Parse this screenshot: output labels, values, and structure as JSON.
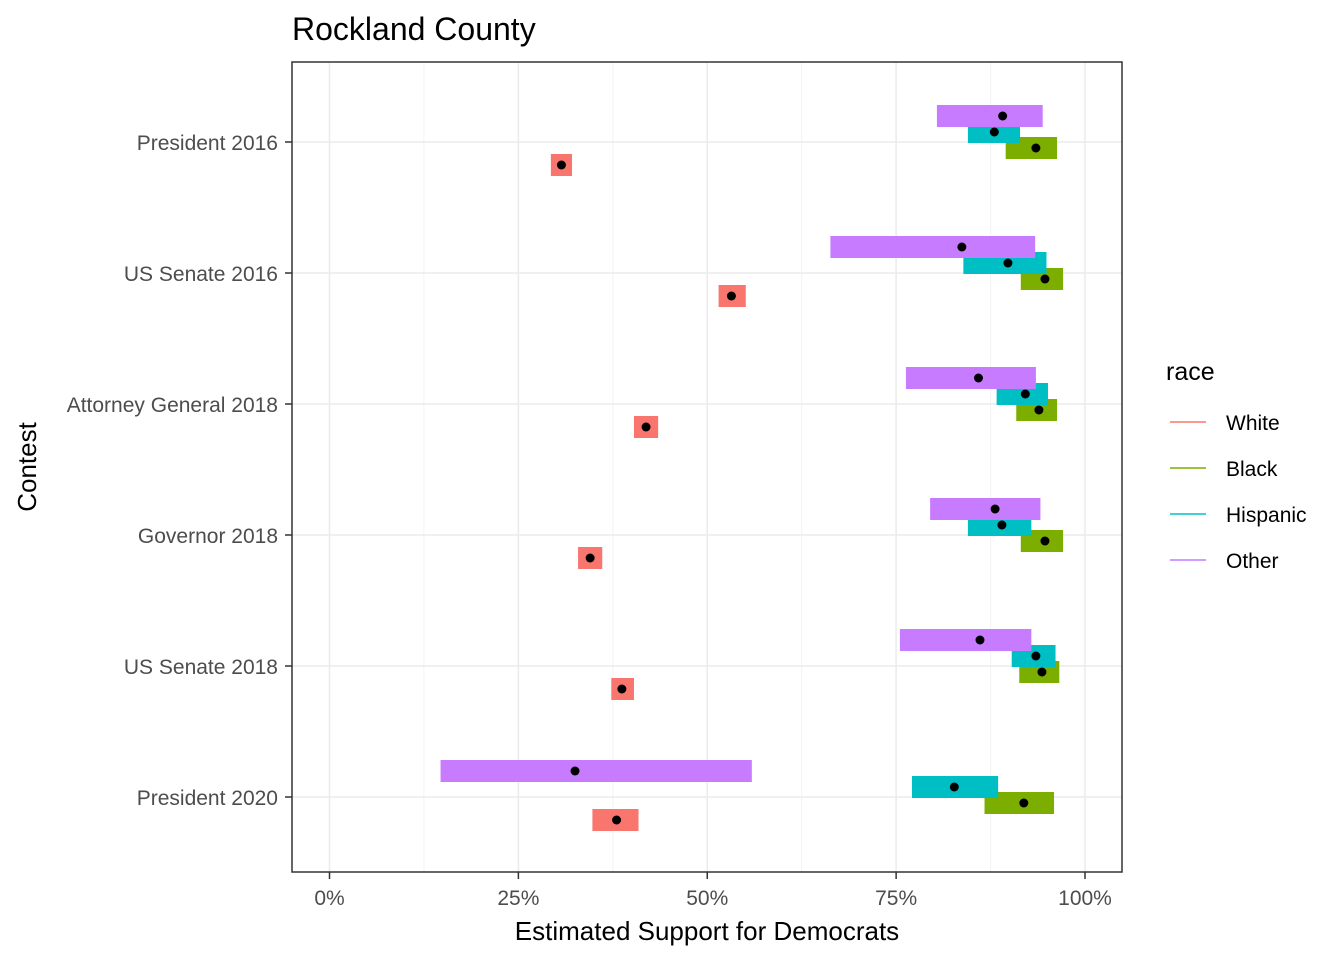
{
  "chart_data": {
    "type": "range-dot",
    "title": "Rockland County",
    "xlabel": "Estimated Support for Democrats",
    "ylabel": "Contest",
    "xlim": [
      -0.1,
      2.1
    ],
    "x_ticks": [
      0,
      0.25,
      0.5,
      0.75,
      1.0
    ],
    "x_tick_labels": [
      "0%",
      "25%",
      "50%",
      "75%",
      "100%"
    ],
    "grid": true,
    "legend": {
      "title": "race",
      "placement": "right"
    },
    "categories": [
      "President 2016",
      "US Senate 2016",
      "Attorney General 2018",
      "Governor 2018",
      "US Senate 2018",
      "President 2020"
    ],
    "series": [
      {
        "name": "White",
        "color": "#F8766D",
        "points": [
          {
            "contest": "President 2016",
            "estimate": 0.307,
            "low": 0.293,
            "high": 0.321
          },
          {
            "contest": "US Senate 2016",
            "estimate": 0.532,
            "low": 0.515,
            "high": 0.551
          },
          {
            "contest": "Attorney General 2018",
            "estimate": 0.419,
            "low": 0.403,
            "high": 0.435
          },
          {
            "contest": "Governor 2018",
            "estimate": 0.345,
            "low": 0.329,
            "high": 0.361
          },
          {
            "contest": "US Senate 2018",
            "estimate": 0.387,
            "low": 0.373,
            "high": 0.403
          },
          {
            "contest": "President 2020",
            "estimate": 0.38,
            "low": 0.348,
            "high": 0.409
          }
        ]
      },
      {
        "name": "Black",
        "color": "#7CAE00",
        "points": [
          {
            "contest": "President 2016",
            "estimate": 0.935,
            "low": 0.895,
            "high": 0.963
          },
          {
            "contest": "US Senate 2016",
            "estimate": 0.947,
            "low": 0.915,
            "high": 0.971
          },
          {
            "contest": "Attorney General 2018",
            "estimate": 0.939,
            "low": 0.909,
            "high": 0.963
          },
          {
            "contest": "Governor 2018",
            "estimate": 0.947,
            "low": 0.915,
            "high": 0.971
          },
          {
            "contest": "US Senate 2018",
            "estimate": 0.943,
            "low": 0.913,
            "high": 0.966
          },
          {
            "contest": "President 2020",
            "estimate": 0.919,
            "low": 0.867,
            "high": 0.959
          }
        ]
      },
      {
        "name": "Hispanic",
        "color": "#00BFC4",
        "points": [
          {
            "contest": "President 2016",
            "estimate": 0.88,
            "low": 0.845,
            "high": 0.914
          },
          {
            "contest": "US Senate 2016",
            "estimate": 0.898,
            "low": 0.839,
            "high": 0.949
          },
          {
            "contest": "Attorney General 2018",
            "estimate": 0.921,
            "low": 0.883,
            "high": 0.951
          },
          {
            "contest": "Governor 2018",
            "estimate": 0.89,
            "low": 0.845,
            "high": 0.929
          },
          {
            "contest": "US Senate 2018",
            "estimate": 0.935,
            "low": 0.903,
            "high": 0.961
          },
          {
            "contest": "President 2020",
            "estimate": 0.827,
            "low": 0.771,
            "high": 0.885
          }
        ]
      },
      {
        "name": "Other",
        "color": "#C77CFF",
        "points": [
          {
            "contest": "President 2016",
            "estimate": 0.891,
            "low": 0.804,
            "high": 0.944
          },
          {
            "contest": "US Senate 2016",
            "estimate": 0.837,
            "low": 0.663,
            "high": 0.934
          },
          {
            "contest": "Attorney General 2018",
            "estimate": 0.859,
            "low": 0.763,
            "high": 0.935
          },
          {
            "contest": "Governor 2018",
            "estimate": 0.881,
            "low": 0.795,
            "high": 0.941
          },
          {
            "contest": "US Senate 2018",
            "estimate": 0.861,
            "low": 0.755,
            "high": 0.929
          },
          {
            "contest": "President 2020",
            "estimate": 0.325,
            "low": 0.147,
            "high": 0.559
          }
        ]
      }
    ]
  }
}
